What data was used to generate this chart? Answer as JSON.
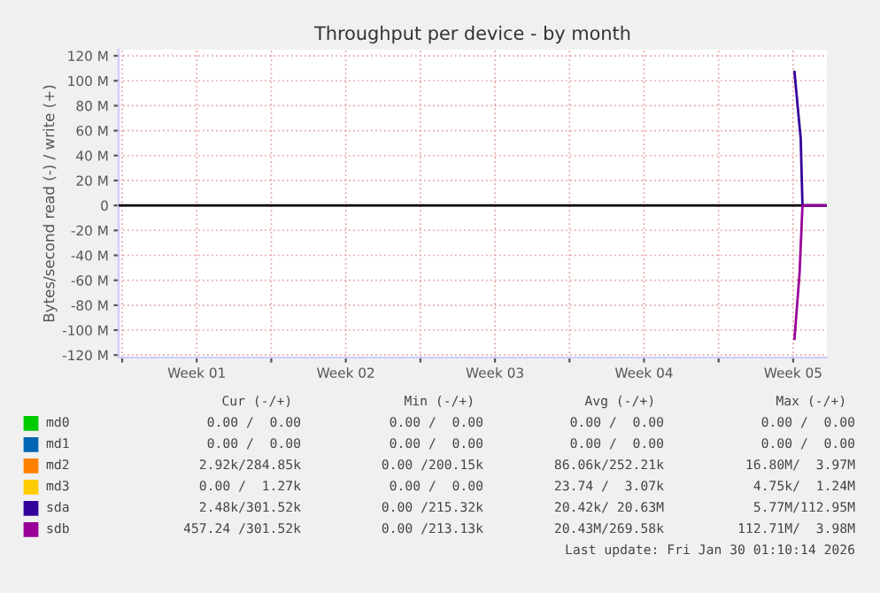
{
  "chart_data": {
    "type": "line",
    "title": "Throughput per device - by month",
    "ylabel": "Bytes/second read (-) / write (+)",
    "xlim": [
      "2025-12-28T20:00",
      "2026-01-31T02:00"
    ],
    "xticks": [
      {
        "value": "2025-12-29",
        "label": null
      },
      {
        "value": "2026-01-01T12:00",
        "label": "Week 01"
      },
      {
        "value": "2026-01-05",
        "label": null
      },
      {
        "value": "2026-01-08T12:00",
        "label": "Week 02"
      },
      {
        "value": "2026-01-12",
        "label": null
      },
      {
        "value": "2026-01-15T12:00",
        "label": "Week 03"
      },
      {
        "value": "2026-01-19",
        "label": null
      },
      {
        "value": "2026-01-22T12:00",
        "label": "Week 04"
      },
      {
        "value": "2026-01-26",
        "label": null
      },
      {
        "value": "2026-01-29T12:00",
        "label": "Week 05"
      }
    ],
    "ylim": [
      -122000000,
      125000000
    ],
    "yticks": [
      {
        "value": -120000000,
        "label": "-120 M"
      },
      {
        "value": -100000000,
        "label": "-100 M"
      },
      {
        "value": -80000000,
        "label": "-80 M"
      },
      {
        "value": -60000000,
        "label": "-60 M"
      },
      {
        "value": -40000000,
        "label": "-40 M"
      },
      {
        "value": -20000000,
        "label": "-20 M"
      },
      {
        "value": 0,
        "label": "0"
      },
      {
        "value": 20000000,
        "label": "20 M"
      },
      {
        "value": 40000000,
        "label": "40 M"
      },
      {
        "value": 60000000,
        "label": "60 M"
      },
      {
        "value": 80000000,
        "label": "80 M"
      },
      {
        "value": 100000000,
        "label": "100 M"
      },
      {
        "value": 120000000,
        "label": "120 M"
      }
    ],
    "grid": true,
    "legend": "bottom",
    "ref_lines": [
      {
        "axis": "y",
        "value": 0,
        "color": "#000000"
      }
    ],
    "series": [
      {
        "name": "md0",
        "color": "#00cc00"
      },
      {
        "name": "md1",
        "color": "#0066b3"
      },
      {
        "name": "md2",
        "color": "#ff8000"
      },
      {
        "name": "md3",
        "color": "#ffcc00"
      },
      {
        "name": "sda",
        "color": "#330099",
        "x": [
          "2026-01-29T13:30",
          "2026-01-29T19:15",
          "2026-01-29T20:30",
          "2026-01-29T22:30",
          "2026-01-31T00:00"
        ],
        "values": [
          107000000,
          63000000,
          54000000,
          0,
          0
        ]
      },
      {
        "name": "sdb",
        "color": "#990099",
        "x": [
          "2026-01-29T13:30",
          "2026-01-29T19:15",
          "2026-01-29T22:30",
          "2026-01-31T00:00"
        ],
        "values": [
          -107000000,
          -54000000,
          0,
          0
        ]
      }
    ],
    "annotations": [
      "Cur (-/+)",
      "Min (-/+)",
      "Avg (-/+)",
      "Max (-/+)",
      "0.00 /  0.00",
      "0.00 /  0.00",
      "0.00 /  0.00",
      "0.00 /  0.00",
      "0.00 /  0.00",
      "0.00 /  0.00",
      "0.00 /  0.00",
      "0.00 /  0.00",
      "2.92k/284.85k",
      "0.00 /200.15k",
      "86.06k/252.21k",
      "16.80M/  3.97M",
      "0.00 /  1.27k",
      "0.00 /  0.00",
      "23.74 /  3.07k",
      "4.75k/  1.24M",
      "2.48k/301.52k",
      "0.00 /215.32k",
      "20.42k/ 20.63M",
      "5.77M/112.95M",
      "457.24 /301.52k",
      "0.00 /213.13k",
      "20.43M/269.58k",
      "112.71M/  3.98M",
      "Last update: Fri Jan 30 01:10:14 2026"
    ]
  }
}
